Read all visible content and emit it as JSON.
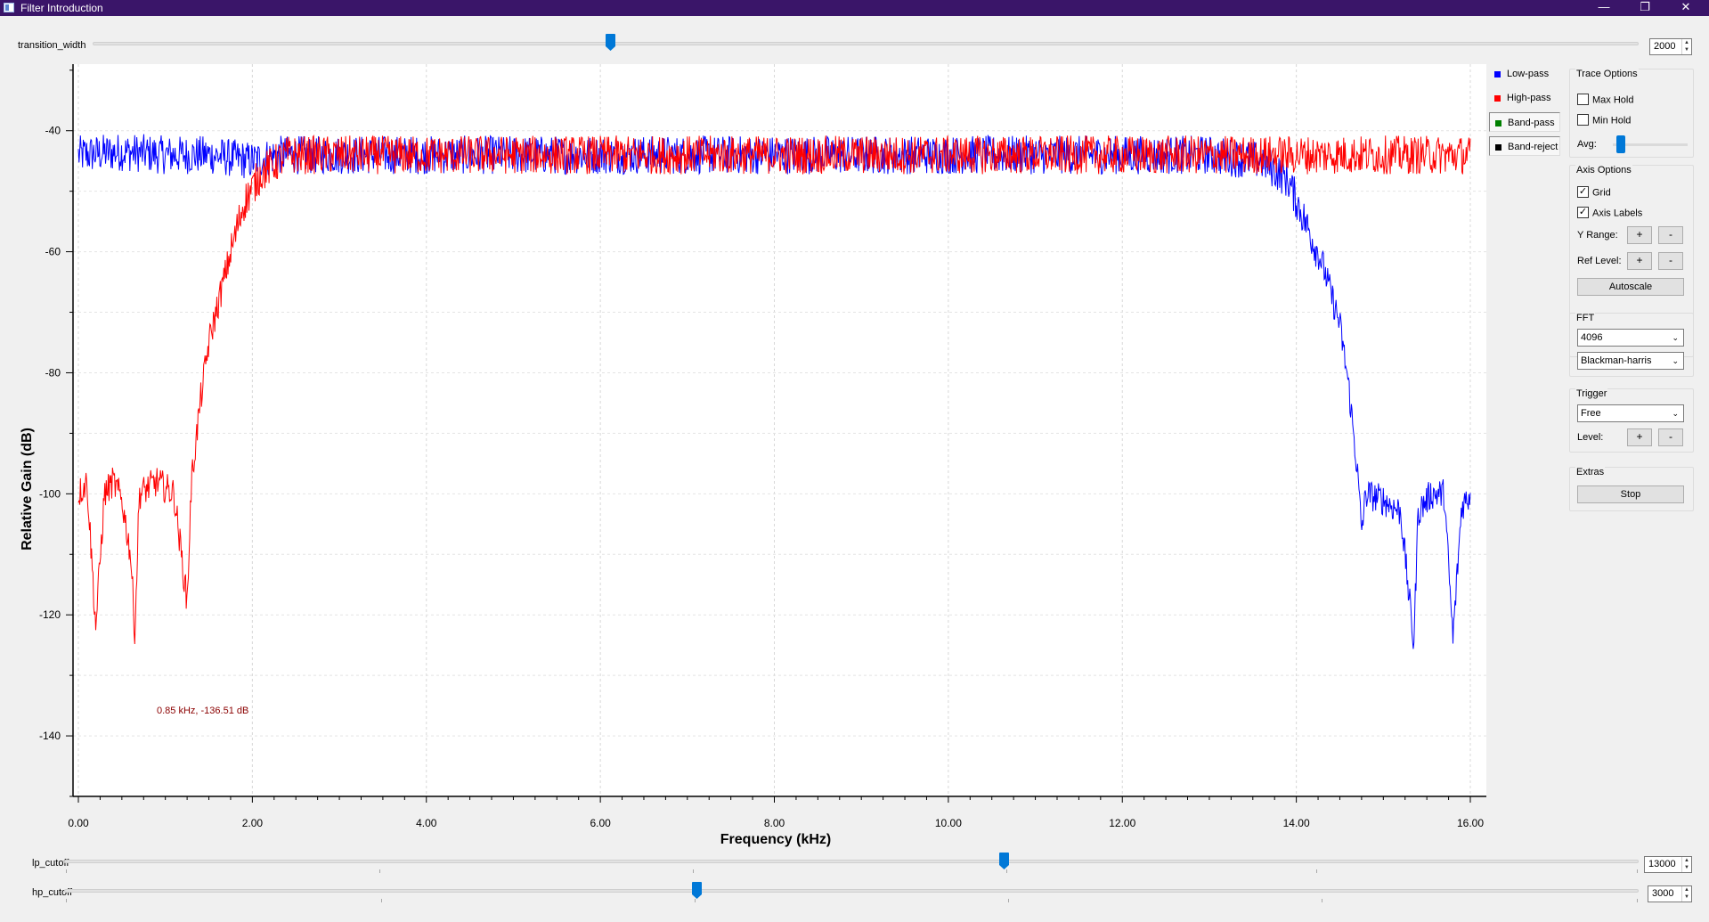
{
  "window": {
    "title": "Filter Introduction",
    "min_glyph": "—",
    "max_glyph": "❐",
    "close_glyph": "✕"
  },
  "transition_width": {
    "label": "transition_width",
    "value": "2000",
    "min": 0,
    "max": 5000,
    "position": 0.38
  },
  "lp_cutoff": {
    "label": "lp_cutoff",
    "value": "13000",
    "fraction": 0.6
  },
  "hp_cutoff": {
    "label": "hp_cutoff",
    "value": "3000",
    "fraction": 0.4
  },
  "legend": {
    "items": [
      {
        "label": "Low-pass",
        "color": "#0000ff"
      },
      {
        "label": "High-pass",
        "color": "#ff0000"
      },
      {
        "label": "Band-pass",
        "color": "#008000"
      },
      {
        "label": "Band-reject",
        "color": "#000000"
      }
    ]
  },
  "controls": {
    "trace_options": {
      "title": "Trace Options",
      "max_hold": {
        "label": "Max Hold",
        "checked": false
      },
      "min_hold": {
        "label": "Min Hold",
        "checked": false
      },
      "avg_label": "Avg:"
    },
    "axis_options": {
      "title": "Axis Options",
      "grid": {
        "label": "Grid",
        "checked": true
      },
      "axis_labels": {
        "label": "Axis Labels",
        "checked": true
      },
      "y_range_label": "Y Range:",
      "ref_level_label": "Ref Level:",
      "plus": "+",
      "minus": "-",
      "autoscale": "Autoscale"
    },
    "fft": {
      "title": "FFT",
      "size": "4096",
      "window": "Blackman-harris"
    },
    "trigger": {
      "title": "Trigger",
      "mode": "Free",
      "level_label": "Level:"
    },
    "extras": {
      "title": "Extras",
      "stop": "Stop"
    }
  },
  "chart_data": {
    "type": "line",
    "xlabel": "Frequency (kHz)",
    "ylabel": "Relative Gain (dB)",
    "xlim": [
      0,
      16
    ],
    "ylim": [
      -150,
      -29
    ],
    "x_ticks": [
      0,
      2,
      4,
      6,
      8,
      10,
      12,
      14,
      16
    ],
    "x_tick_labels": [
      "0.00",
      "2.00",
      "4.00",
      "6.00",
      "8.00",
      "10.00",
      "12.00",
      "14.00",
      "16.00"
    ],
    "y_ticks": [
      -40,
      -60,
      -80,
      -100,
      -120,
      -140
    ],
    "grid": true,
    "marker_label": "0.85 kHz, -136.51 dB",
    "series": [
      {
        "name": "Low-pass",
        "color": "#0000ff",
        "x": [
          0,
          0.5,
          1.0,
          1.5,
          2.0,
          2.3,
          13.0,
          13.6,
          13.9,
          14.1,
          14.3,
          14.5,
          14.6,
          14.7,
          14.75,
          14.8,
          15.0,
          15.2,
          15.35,
          15.4,
          15.55,
          15.7,
          15.8,
          15.9,
          16.0
        ],
        "values": [
          -44,
          -43.5,
          -44,
          -44,
          -45,
          -44,
          -44,
          -45,
          -48,
          -55,
          -62,
          -72,
          -82,
          -96,
          -106,
          -100,
          -101,
          -103,
          -125,
          -103,
          -100,
          -100,
          -124,
          -102,
          -100
        ]
      },
      {
        "name": "High-pass",
        "color": "#ff0000",
        "x": [
          0,
          0.1,
          0.2,
          0.3,
          0.4,
          0.5,
          0.6,
          0.65,
          0.7,
          0.9,
          1.1,
          1.25,
          1.3,
          1.4,
          1.5,
          1.7,
          1.9,
          2.1,
          2.4,
          3.0,
          6.0,
          10.0,
          13.0,
          16.0
        ],
        "values": [
          -100,
          -98,
          -122,
          -100,
          -98,
          -101,
          -110,
          -123,
          -100,
          -98,
          -100,
          -118,
          -98,
          -85,
          -75,
          -63,
          -52,
          -47,
          -44,
          -44,
          -44,
          -44,
          -44,
          -44
        ]
      }
    ]
  }
}
